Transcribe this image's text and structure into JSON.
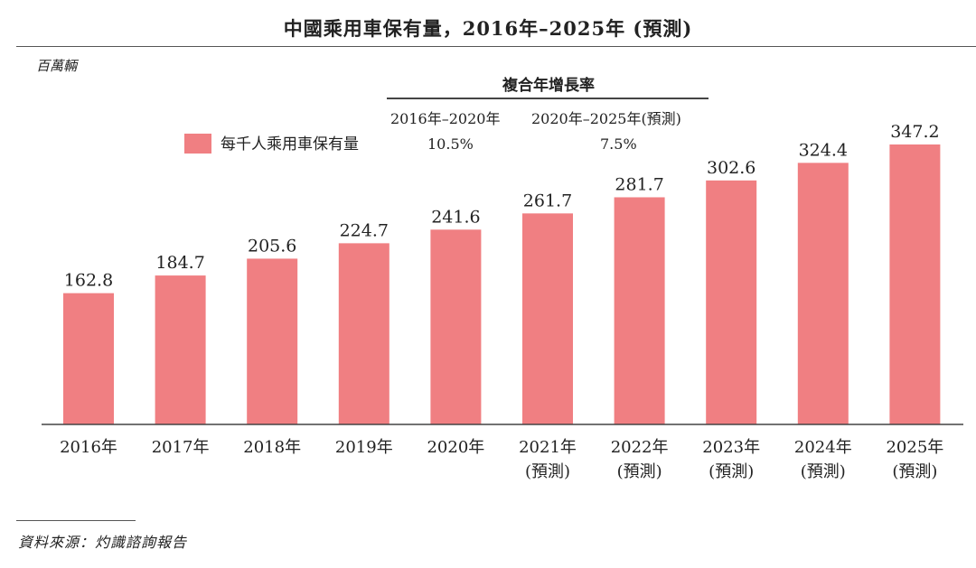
{
  "chart_data": {
    "type": "bar",
    "title": "中國乘用車保有量，2016年–2025年 (預測)",
    "ylabel": "百萬輛",
    "xlabel": "",
    "categories": [
      "2016年",
      "2017年",
      "2018年",
      "2019年",
      "2020年",
      "2021年",
      "2022年",
      "2023年",
      "2024年",
      "2025年"
    ],
    "category_notes": [
      "",
      "",
      "",
      "",
      "",
      "(預測)",
      "(預測)",
      "(預測)",
      "(預測)",
      "(預測)"
    ],
    "values": [
      162.8,
      184.7,
      205.6,
      224.7,
      241.6,
      261.7,
      281.7,
      302.6,
      324.4,
      347.2
    ],
    "value_labels": [
      "162.8",
      "184.7",
      "205.6",
      "224.7",
      "241.6",
      "261.7",
      "281.7",
      "302.6",
      "324.4",
      "347.2"
    ],
    "ylim": [
      0,
      347.2
    ],
    "grid": false,
    "legend": [
      {
        "name": "每千人乘用車保有量",
        "color": "#f07f82"
      }
    ],
    "bar_color": "#f07f82",
    "cagr": {
      "heading": "複合年增長率",
      "periods": [
        {
          "label": "2016年–2020年",
          "value": "10.5%"
        },
        {
          "label": "2020年–2025年(預測)",
          "value": "7.5%"
        }
      ]
    }
  },
  "source": "資料來源：灼識諮詢報告"
}
